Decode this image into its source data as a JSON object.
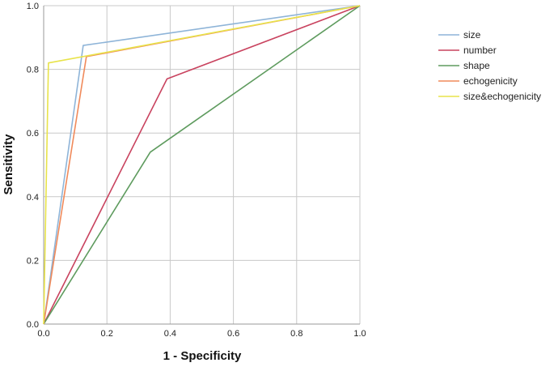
{
  "chart_data": {
    "type": "line",
    "xlabel": "1 - Specificity",
    "ylabel": "Sensitivity",
    "xlim": [
      0,
      1
    ],
    "ylim": [
      0,
      1
    ],
    "xticks": [
      "0.0",
      "0.2",
      "0.4",
      "0.6",
      "0.8",
      "1.0"
    ],
    "yticks": [
      "0.0",
      "0.2",
      "0.4",
      "0.6",
      "0.8",
      "1.0"
    ],
    "grid": true,
    "legend_position": "right",
    "series": [
      {
        "name": "size",
        "color": "#8eb4d8",
        "points": [
          [
            0,
            0
          ],
          [
            0.125,
            0.875
          ],
          [
            1,
            1
          ]
        ]
      },
      {
        "name": "number",
        "color": "#c9435f",
        "points": [
          [
            0,
            0
          ],
          [
            0.39,
            0.77
          ],
          [
            1,
            1
          ]
        ]
      },
      {
        "name": "shape",
        "color": "#5e9b5e",
        "points": [
          [
            0,
            0
          ],
          [
            0.337,
            0.54
          ],
          [
            1,
            1
          ]
        ]
      },
      {
        "name": "echogenicity",
        "color": "#f08a5b",
        "points": [
          [
            0,
            0
          ],
          [
            0.135,
            0.84
          ],
          [
            1,
            1
          ]
        ]
      },
      {
        "name": "size&echogenicity",
        "color": "#e8e34a",
        "points": [
          [
            0,
            0
          ],
          [
            0.015,
            0.82
          ],
          [
            1,
            1
          ]
        ]
      }
    ]
  }
}
